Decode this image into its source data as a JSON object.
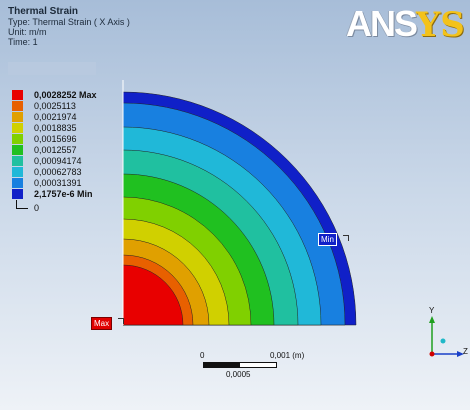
{
  "header": {
    "title": "Thermal Strain",
    "type": "Type: Thermal Strain ( X Axis )",
    "unit": "Unit: m/m",
    "time": "Time: 1"
  },
  "logo": {
    "an": "ANS",
    "ys": "YS"
  },
  "legend": {
    "entries": [
      {
        "label": "0,0028252 Max",
        "color": "#e80000",
        "bold": true
      },
      {
        "label": "0,0025113",
        "color": "#e86000",
        "bold": false
      },
      {
        "label": "0,0021974",
        "color": "#e0a000",
        "bold": false
      },
      {
        "label": "0,0018835",
        "color": "#d0d000",
        "bold": false
      },
      {
        "label": "0,0015696",
        "color": "#80d000",
        "bold": false
      },
      {
        "label": "0,0012557",
        "color": "#20c020",
        "bold": false
      },
      {
        "label": "0,00094174",
        "color": "#20c0a0",
        "bold": false
      },
      {
        "label": "0,00062783",
        "color": "#20b8d8",
        "bold": false
      },
      {
        "label": "0,00031391",
        "color": "#1880e0",
        "bold": false
      },
      {
        "label": "2,1757e-6 Min",
        "color": "#1020c8",
        "bold": true
      }
    ],
    "zero": "0"
  },
  "probes": {
    "max": "Max",
    "min": "Min"
  },
  "scale": {
    "left": "0",
    "right": "0,001 (m)",
    "mid": "0,0005"
  },
  "triad": {
    "y": "Y",
    "z": "Z"
  }
}
